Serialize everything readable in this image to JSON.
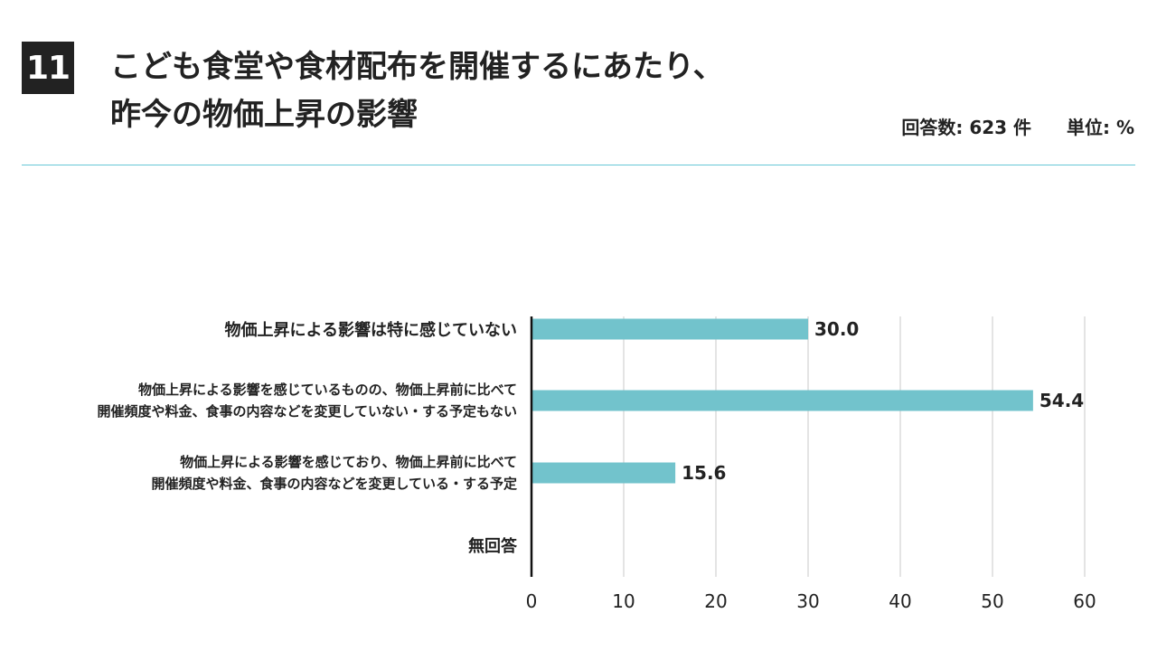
{
  "header": {
    "number": "11",
    "title_lines": [
      "こども食堂や食材配布を開催するにあたり、",
      "昨今の物価上昇の影響"
    ],
    "respondents": "回答数: 623 件",
    "unit": "単位: %"
  },
  "colors": {
    "bar": "#72c3cc",
    "rule": "#66c7d6",
    "grid": "#c8c8c8",
    "axis": "#111111"
  },
  "chart_data": {
    "type": "bar",
    "orientation": "horizontal",
    "categories": [
      [
        "物価上昇による影響は特に感じていない"
      ],
      [
        "物価上昇による影響を感じているものの、物価上昇前に比べて",
        "開催頻度や料金、食事の内容などを変更していない・する予定もない"
      ],
      [
        "物価上昇による影響を感じており、物価上昇前に比べて",
        "開催頻度や料金、食事の内容などを変更している・する予定"
      ],
      [
        "無回答"
      ]
    ],
    "values": [
      30.0,
      54.4,
      15.6,
      null
    ],
    "data_labels": [
      "30.0",
      "54.4",
      "15.6",
      ""
    ],
    "xlim": [
      0,
      60
    ],
    "xticks": [
      "0",
      "10",
      "20",
      "30",
      "40",
      "50",
      "60"
    ],
    "grid": true
  }
}
